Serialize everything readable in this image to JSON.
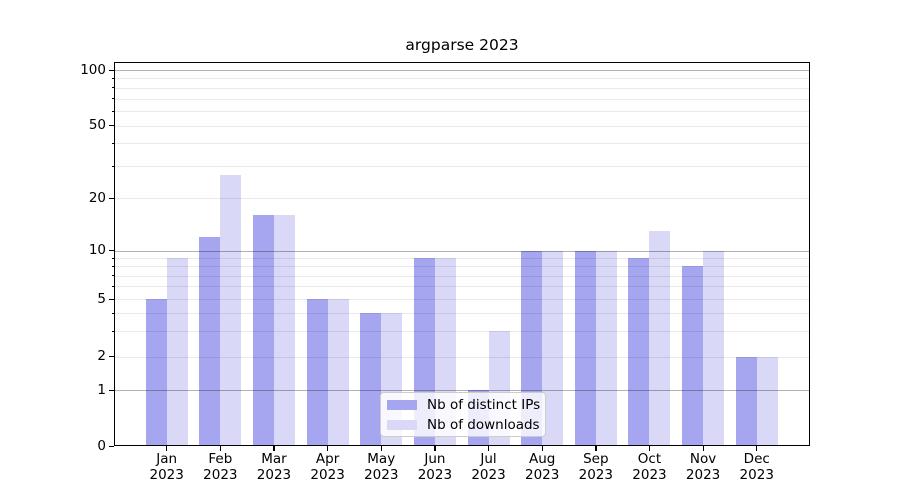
{
  "figure": {
    "title": "argparse 2023"
  },
  "chart_data": {
    "type": "bar",
    "title": "argparse 2023",
    "categories": [
      "Jan",
      "Feb",
      "Mar",
      "Apr",
      "May",
      "Jun",
      "Jul",
      "Aug",
      "Sep",
      "Oct",
      "Nov",
      "Dec"
    ],
    "x_tick_year": "2023",
    "series": [
      {
        "name": "Nb of distinct IPs",
        "color": "#a6a6f0",
        "values": [
          5,
          12,
          16,
          5,
          4,
          9,
          1,
          10,
          10,
          9,
          8,
          2
        ]
      },
      {
        "name": "Nb of downloads",
        "color": "#d9d9f7",
        "values": [
          9,
          27,
          16,
          5,
          4,
          9,
          3,
          10,
          10,
          13,
          10,
          2
        ]
      }
    ],
    "y_axis": {
      "scale": "symlog",
      "ticks_labeled": [
        100,
        50,
        20,
        10,
        5,
        2,
        1,
        0
      ],
      "major_gridlines": [
        1,
        10,
        100
      ],
      "minor_gridlines": [
        2,
        3,
        4,
        5,
        6,
        7,
        8,
        9,
        20,
        30,
        40,
        50,
        60,
        70,
        80,
        90
      ],
      "ylim": [
        0,
        110
      ]
    },
    "legend": {
      "position": "lower-center",
      "entries": [
        "Nb of distinct IPs",
        "Nb of downloads"
      ]
    },
    "grid": true
  },
  "colors": {
    "background": "#ffffff",
    "text": "#000000",
    "grid_major": "rgba(0,0,0,0.30)",
    "grid_minor": "rgba(0,0,0,0.085)",
    "legend_border": "#cccccc",
    "legend_background": "rgba(255,255,255,0.8)",
    "series_1": "#a6a6f0",
    "series_2": "#d9d9f7"
  }
}
